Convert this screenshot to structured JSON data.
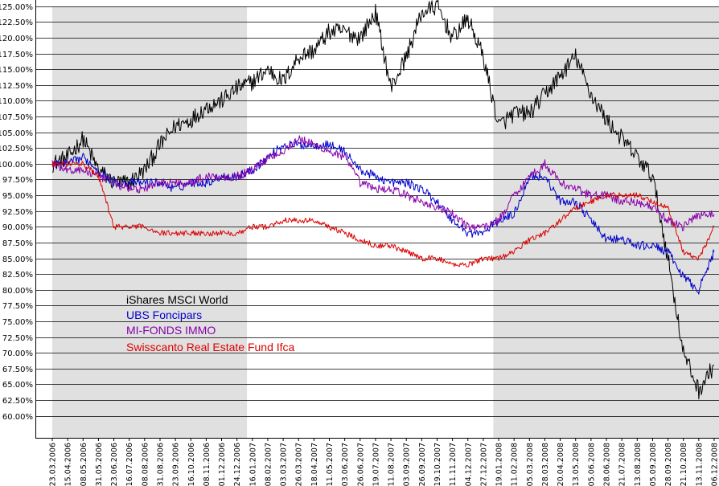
{
  "chart_data": {
    "type": "line",
    "title": "",
    "xlabel": "",
    "ylabel": "",
    "ylim": [
      56.5,
      126
    ],
    "yticks": [
      "60.00%",
      "62.50%",
      "65.00%",
      "67.50%",
      "70.00%",
      "72.50%",
      "75.00%",
      "77.50%",
      "80.00%",
      "82.50%",
      "85.00%",
      "87.50%",
      "90.00%",
      "92.50%",
      "95.00%",
      "97.50%",
      "100.00%",
      "102.50%",
      "105.00%",
      "107.50%",
      "110.00%",
      "112.50%",
      "115.00%",
      "117.50%",
      "120.00%",
      "122.50%",
      "125.00%"
    ],
    "x": [
      "23.03.2006",
      "15.04.2006",
      "08.05.2006",
      "31.05.2006",
      "23.06.2006",
      "16.07.2006",
      "08.08.2006",
      "31.08.2006",
      "23.09.2006",
      "16.10.2006",
      "08.11.2006",
      "01.12.2006",
      "24.12.2006",
      "16.01.2007",
      "08.02.2007",
      "03.03.2007",
      "26.03.2007",
      "18.04.2007",
      "11.05.2007",
      "03.06.2007",
      "26.06.2007",
      "19.07.2007",
      "11.08.2007",
      "03.09.2007",
      "26.09.2007",
      "19.10.2007",
      "11.11.2007",
      "04.12.2007",
      "27.12.2007",
      "19.01.2008",
      "11.02.2008",
      "05.03.2008",
      "28.03.2008",
      "20.04.2008",
      "13.05.2008",
      "05.06.2008",
      "28.06.2008",
      "21.07.2008",
      "13.08.2008",
      "05.09.2008",
      "28.09.2008",
      "21.10.2008",
      "13.11.2008",
      "06.12.2008"
    ],
    "shaded_years": [
      "2006",
      "2008"
    ],
    "grid": true,
    "legend_placement": "lower-left",
    "series": [
      {
        "name": "iShares MSCI World",
        "color": "#000000",
        "values": [
          100,
          101,
          104,
          99,
          97,
          97,
          99,
          103,
          106,
          107,
          109,
          110,
          112,
          113,
          115,
          113,
          117,
          118,
          121,
          121,
          120,
          124,
          112,
          117,
          124,
          125,
          120,
          123,
          117,
          106,
          108,
          108,
          111,
          114,
          117,
          111,
          107,
          104,
          101,
          98,
          85,
          70,
          64,
          68
        ]
      },
      {
        "name": "UBS Foncipars",
        "color": "#0000cc",
        "values": [
          100,
          100,
          101,
          99,
          97,
          97,
          97,
          97,
          96,
          97,
          97,
          98,
          98,
          99,
          101,
          103,
          103,
          103,
          103,
          102,
          99,
          98,
          97,
          97,
          96,
          94,
          91,
          89,
          89,
          91,
          92,
          98,
          98,
          94,
          94,
          91,
          88,
          88,
          87,
          87,
          86,
          82,
          80,
          86
        ]
      },
      {
        "name": "MI-FONDS IMMO",
        "color": "#8800aa",
        "values": [
          100,
          99,
          99,
          98,
          97,
          96,
          96,
          97,
          97,
          97,
          98,
          98,
          98,
          99,
          101,
          102,
          104,
          103,
          102,
          101,
          97,
          96,
          96,
          95,
          94,
          93,
          92,
          90,
          90,
          91,
          95,
          98,
          100,
          97,
          96,
          95,
          95,
          94,
          94,
          93,
          91,
          90,
          92,
          92
        ]
      },
      {
        "name": "Swisscanto Real Estate Fund Ifca",
        "color": "#dd0000",
        "values": [
          100,
          100,
          100,
          98,
          90,
          90,
          90,
          89,
          89,
          89,
          89,
          89,
          89,
          90,
          90,
          91,
          91,
          91,
          90,
          89,
          88,
          87,
          87,
          86,
          85,
          85,
          84,
          84,
          85,
          85,
          86,
          88,
          89,
          91,
          93,
          94,
          95,
          95,
          95,
          94,
          93,
          86,
          85,
          90
        ]
      }
    ]
  }
}
